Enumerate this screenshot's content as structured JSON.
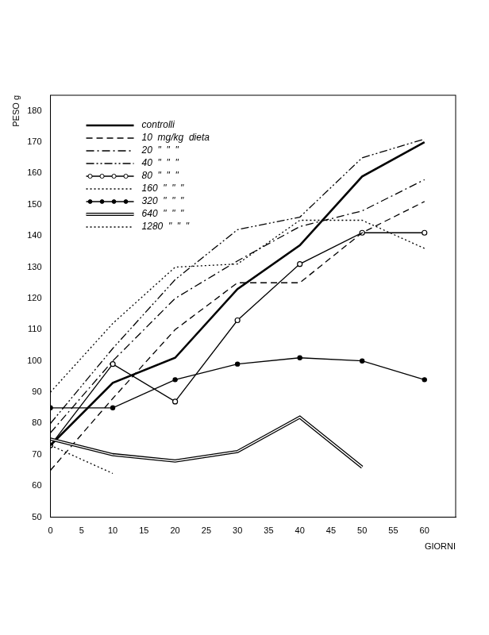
{
  "chart_data": {
    "type": "line",
    "x_label": "GIORNI",
    "y_label": "PESO g",
    "x": [
      0,
      10,
      20,
      30,
      40,
      50,
      60
    ],
    "xlim": [
      0,
      65
    ],
    "xticks": [
      0,
      5,
      10,
      15,
      20,
      25,
      30,
      35,
      40,
      45,
      50,
      55,
      60
    ],
    "ylim": [
      50,
      185
    ],
    "yticks": [
      50,
      60,
      70,
      80,
      90,
      100,
      110,
      120,
      130,
      140,
      150,
      160,
      170,
      180
    ],
    "grid": false,
    "legend": "upper left",
    "series": [
      {
        "name": "controlli",
        "color": "#000000",
        "line_style": "solid_bold",
        "values": [
          73,
          93,
          101,
          123,
          137,
          159,
          170
        ]
      },
      {
        "name": "10  mg/kg  dieta",
        "color": "#000000",
        "line_style": "dashed",
        "values": [
          65,
          88,
          110,
          125,
          125,
          141,
          151
        ]
      },
      {
        "name": "20  \"  \"  \"",
        "color": "#000000",
        "line_style": "dashdot",
        "values": [
          77,
          100,
          120,
          132,
          143,
          148,
          158
        ]
      },
      {
        "name": "40  \"  \"  \"",
        "color": "#000000",
        "line_style": "dashdotdot",
        "values": [
          80,
          104,
          126,
          142,
          146,
          165,
          171
        ]
      },
      {
        "name": "80  \"  \"  \"",
        "color": "#000000",
        "line_style": "solid",
        "marker": "circle",
        "values": [
          73,
          99,
          87,
          113,
          131,
          141,
          141
        ]
      },
      {
        "name": "160  \"  \"  \"",
        "color": "#000000",
        "line_style": "dotted",
        "values": [
          90,
          112,
          130,
          131,
          145,
          145,
          136
        ]
      },
      {
        "name": "320  \"  \"  \"",
        "color": "#000000",
        "line_style": "solid",
        "marker": "dot",
        "values": [
          85,
          85,
          94,
          99,
          101,
          100,
          94
        ]
      },
      {
        "name": "640  \"  \"  \"",
        "color": "#000000",
        "line_style": "double",
        "values": [
          75,
          70,
          68,
          71,
          82,
          66,
          null
        ]
      },
      {
        "name": "1280  \"  \"  \"",
        "color": "#000000",
        "line_style": "dotted",
        "values": [
          73,
          64,
          null,
          null,
          null,
          null,
          null
        ]
      }
    ]
  }
}
